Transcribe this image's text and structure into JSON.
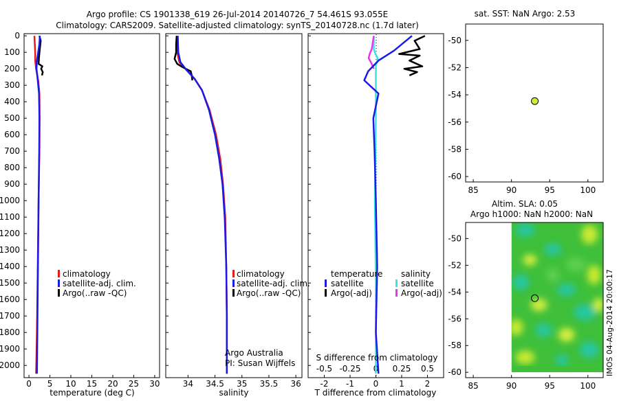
{
  "header": {
    "line1": "Argo profile: CS 1901338_619 26-Jul-2014 20140726_7 54.461S 93.055E",
    "line2": "Climatology: CARS2009. Satellite-adjusted climatology: synTS_20140728.nc (1.7d later)"
  },
  "colors": {
    "climatology": "#e41a1c",
    "satellite": "#1a1ae6",
    "argo": "#000000",
    "s_satellite": "#33e6e6",
    "s_argo": "#ee33ee",
    "dot": "#ccee33"
  },
  "depth_axis": {
    "ticks": [
      "0",
      "100",
      "200",
      "300",
      "400",
      "500",
      "600",
      "700",
      "800",
      "900",
      "1000",
      "1100",
      "1200",
      "1300",
      "1400",
      "1500",
      "1600",
      "1700",
      "1800",
      "1900",
      "2000"
    ]
  },
  "chart_data": [
    {
      "id": "temperature",
      "type": "line",
      "xlabel": "temperature (deg C)",
      "ylabel": "depth",
      "xlim": [
        -1,
        31
      ],
      "ylim": [
        2070,
        -5
      ],
      "xticks": [
        "0",
        "5",
        "10",
        "15",
        "20",
        "25",
        "30"
      ],
      "legend": [
        "climatology",
        "satellite-adj. clim.",
        "Argo(..raw -QC)"
      ],
      "series": [
        {
          "name": "climatology",
          "points": [
            [
              1.3,
              0
            ],
            [
              1.4,
              50
            ],
            [
              1.5,
              100
            ],
            [
              1.5,
              150
            ],
            [
              1.7,
              200
            ],
            [
              2.2,
              270
            ],
            [
              2.5,
              350
            ],
            [
              2.55,
              500
            ],
            [
              2.5,
              700
            ],
            [
              2.3,
              1000
            ],
            [
              2.1,
              1400
            ],
            [
              1.9,
              1800
            ],
            [
              1.7,
              2050
            ]
          ]
        },
        {
          "name": "satellite-adj. clim.",
          "points": [
            [
              2.6,
              0
            ],
            [
              2.5,
              50
            ],
            [
              2.2,
              100
            ],
            [
              1.9,
              150
            ],
            [
              1.8,
              200
            ],
            [
              2.1,
              270
            ],
            [
              2.4,
              350
            ],
            [
              2.5,
              500
            ],
            [
              2.45,
              700
            ],
            [
              2.3,
              1000
            ],
            [
              2.15,
              1400
            ],
            [
              2.0,
              1800
            ],
            [
              1.9,
              2050
            ]
          ]
        },
        {
          "name": "Argo(..raw -QC)",
          "points": [
            [
              2.5,
              0
            ],
            [
              2.8,
              30
            ],
            [
              2.6,
              80
            ],
            [
              2.4,
              130
            ],
            [
              2.3,
              170
            ],
            [
              3.2,
              185
            ],
            [
              2.9,
              200
            ],
            [
              3.3,
              220
            ],
            [
              3.1,
              240
            ]
          ]
        }
      ]
    },
    {
      "id": "salinity",
      "type": "line",
      "xlabel": "salinity",
      "ylabel": "depth",
      "xlim": [
        33.6,
        36.1
      ],
      "ylim": [
        2070,
        -5
      ],
      "xticks": [
        "34",
        "34.5",
        "35",
        "35.5",
        "36"
      ],
      "legend": [
        "climatology",
        "satellite-adj. clim.",
        "Argo(..raw -QC)"
      ],
      "annotation": [
        "Argo Australia",
        "PI: Susan Wijffels"
      ],
      "series": [
        {
          "name": "climatology",
          "points": [
            [
              33.79,
              0
            ],
            [
              33.8,
              100
            ],
            [
              33.84,
              160
            ],
            [
              33.98,
              210
            ],
            [
              34.12,
              260
            ],
            [
              34.26,
              330
            ],
            [
              34.4,
              450
            ],
            [
              34.52,
              600
            ],
            [
              34.6,
              750
            ],
            [
              34.65,
              900
            ],
            [
              34.69,
              1100
            ],
            [
              34.71,
              1400
            ],
            [
              34.72,
              1700
            ],
            [
              34.72,
              2050
            ]
          ]
        },
        {
          "name": "satellite-adj. clim.",
          "points": [
            [
              33.81,
              0
            ],
            [
              33.82,
              100
            ],
            [
              33.86,
              160
            ],
            [
              33.98,
              210
            ],
            [
              34.12,
              260
            ],
            [
              34.26,
              330
            ],
            [
              34.39,
              450
            ],
            [
              34.5,
              600
            ],
            [
              34.58,
              750
            ],
            [
              34.64,
              900
            ],
            [
              34.68,
              1100
            ],
            [
              34.71,
              1400
            ],
            [
              34.72,
              1700
            ],
            [
              34.72,
              2050
            ]
          ]
        },
        {
          "name": "Argo(..raw -QC)",
          "points": [
            [
              33.79,
              0
            ],
            [
              33.78,
              50
            ],
            [
              33.78,
              100
            ],
            [
              33.75,
              140
            ],
            [
              33.8,
              170
            ],
            [
              33.9,
              190
            ],
            [
              33.96,
              200
            ],
            [
              34.05,
              215
            ],
            [
              34.07,
              240
            ],
            [
              34.08,
              270
            ]
          ]
        }
      ]
    },
    {
      "id": "difference",
      "type": "line",
      "xlabel": "T difference from climatology",
      "x2label": "S difference from climatology",
      "ylabel": "depth",
      "xlim": [
        -2.6,
        2.6
      ],
      "ylim": [
        2070,
        -5
      ],
      "xticks": [
        "-2",
        "-1",
        "0",
        "1",
        "2"
      ],
      "x2ticks": [
        "-0.5",
        "-0.25",
        "0",
        "0.25",
        "0.5"
      ],
      "legend_title_t": "temperature",
      "legend_title_s": "salinity",
      "legend_t": [
        "satellite",
        "Argo(-adj)"
      ],
      "legend_s": [
        "satellite",
        "Argo(-adj)"
      ],
      "series": [
        {
          "name": "T satellite",
          "points": [
            [
              1.4,
              0
            ],
            [
              0.7,
              90
            ],
            [
              0.1,
              150
            ],
            [
              -0.3,
              215
            ],
            [
              -0.45,
              270
            ],
            [
              0.1,
              350
            ],
            [
              -0.1,
              500
            ],
            [
              -0.05,
              700
            ],
            [
              0.0,
              1000
            ],
            [
              0.05,
              1400
            ],
            [
              0.0,
              1800
            ],
            [
              0.1,
              2050
            ]
          ]
        },
        {
          "name": "T Argo(-adj)",
          "points": [
            [
              1.9,
              0
            ],
            [
              1.5,
              30
            ],
            [
              1.7,
              80
            ],
            [
              0.9,
              110
            ],
            [
              1.7,
              120
            ],
            [
              1.3,
              150
            ],
            [
              1.8,
              185
            ],
            [
              1.1,
              200
            ],
            [
              1.6,
              220
            ],
            [
              1.3,
              240
            ]
          ]
        },
        {
          "name": "S satellite",
          "points": [
            [
              -0.02,
              0
            ],
            [
              -0.02,
              80
            ],
            [
              -0.01,
              100
            ],
            [
              0.02,
              140
            ],
            [
              0.0,
              180
            ],
            [
              0.0,
              500
            ],
            [
              -0.01,
              1000
            ],
            [
              0.0,
              1500
            ],
            [
              0.0,
              2050
            ]
          ]
        },
        {
          "name": "S Argo(-adj)",
          "points": [
            [
              -0.02,
              0
            ],
            [
              -0.04,
              80
            ],
            [
              -0.06,
              110
            ],
            [
              -0.07,
              135
            ],
            [
              -0.04,
              170
            ],
            [
              -0.02,
              200
            ]
          ]
        }
      ]
    },
    {
      "id": "sst-map",
      "type": "scatter",
      "title": "sat. SST: NaN Argo: 2.53",
      "xlim": [
        84,
        102
      ],
      "ylim": [
        -60.4,
        -48.8
      ],
      "xticks": [
        "85",
        "90",
        "95",
        "100"
      ],
      "yticks": [
        "-50",
        "-52",
        "-54",
        "-56",
        "-58",
        "-60"
      ],
      "points": [
        [
          93.05,
          -54.46
        ]
      ]
    },
    {
      "id": "sla-map",
      "type": "heatmap",
      "title_line1": "Altim. SLA: 0.05",
      "title_line2": "Argo h1000: NaN h2000: NaN",
      "xlim": [
        84,
        102
      ],
      "ylim": [
        -60.4,
        -48.8
      ],
      "xticks": [
        "85",
        "90",
        "95",
        "100"
      ],
      "yticks": [
        "-50",
        "-52",
        "-54",
        "-56",
        "-58",
        "-60"
      ],
      "field_extent": {
        "lon": [
          90,
          102
        ],
        "lat": [
          -60,
          -48.8
        ]
      },
      "points": [
        [
          93.05,
          -54.46
        ]
      ],
      "side_label": "IMOS 04-Aug-2014 20:00:17"
    }
  ]
}
